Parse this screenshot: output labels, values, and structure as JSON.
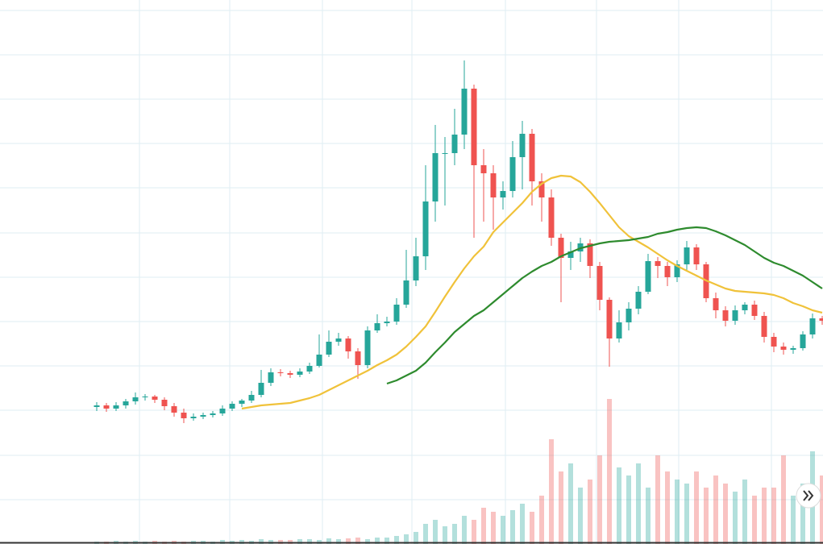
{
  "chart_data": {
    "type": "candlestick",
    "ylim": [
      0,
      675
    ],
    "yticks": [
      55,
      110,
      166,
      221,
      276,
      331,
      386,
      442,
      497,
      552,
      607,
      662
    ],
    "grid": true,
    "up_color": "#26a69a",
    "down_color": "#ef5350",
    "open": [
      170,
      172,
      168,
      172,
      177,
      182,
      183,
      179,
      171,
      163,
      156,
      158,
      160,
      162,
      168,
      174,
      178,
      185,
      200,
      213,
      212,
      210,
      214,
      221,
      235,
      251,
      255,
      239,
      222,
      265,
      274,
      276,
      297,
      327,
      357,
      425,
      485,
      485,
      508,
      565,
      470,
      460,
      430,
      438,
      480,
      509,
      450,
      430,
      380,
      355,
      363,
      373,
      345,
      303,
      255,
      275,
      292,
      313,
      351,
      345,
      331,
      347,
      368,
      347,
      305,
      290,
      277,
      290,
      297,
      283,
      257,
      245,
      241,
      243,
      260,
      280
    ],
    "high": [
      176,
      175,
      176,
      180,
      188,
      186,
      185,
      182,
      175,
      168,
      162,
      163,
      165,
      172,
      177,
      180,
      190,
      216,
      218,
      217,
      215,
      218,
      225,
      260,
      265,
      262,
      258,
      243,
      270,
      285,
      282,
      305,
      365,
      380,
      470,
      520,
      505,
      540,
      600,
      570,
      490,
      470,
      450,
      500,
      525,
      515,
      460,
      440,
      385,
      375,
      380,
      378,
      350,
      306,
      290,
      300,
      320,
      360,
      356,
      350,
      352,
      376,
      372,
      350,
      312,
      295,
      296,
      300,
      302,
      288,
      262,
      250,
      246,
      264,
      286,
      283
    ],
    "low": [
      165,
      164,
      165,
      168,
      173,
      178,
      175,
      166,
      158,
      150,
      153,
      155,
      157,
      159,
      165,
      170,
      175,
      182,
      196,
      208,
      206,
      207,
      211,
      219,
      232,
      246,
      230,
      205,
      218,
      262,
      270,
      272,
      293,
      320,
      340,
      400,
      420,
      470,
      490,
      380,
      400,
      390,
      415,
      430,
      440,
      420,
      400,
      370,
      300,
      340,
      350,
      330,
      290,
      220,
      250,
      265,
      285,
      310,
      330,
      320,
      325,
      340,
      340,
      300,
      280,
      270,
      272,
      285,
      278,
      250,
      238,
      235,
      236,
      240,
      255,
      272
    ],
    "close": [
      172,
      168,
      172,
      177,
      182,
      183,
      179,
      171,
      163,
      156,
      158,
      160,
      162,
      168,
      174,
      178,
      185,
      200,
      213,
      212,
      210,
      214,
      221,
      235,
      251,
      255,
      239,
      222,
      265,
      274,
      276,
      297,
      327,
      357,
      425,
      485,
      485,
      508,
      565,
      470,
      460,
      430,
      438,
      480,
      509,
      450,
      430,
      380,
      355,
      363,
      373,
      345,
      303,
      255,
      275,
      292,
      313,
      351,
      345,
      331,
      347,
      368,
      347,
      305,
      290,
      277,
      290,
      297,
      283,
      257,
      245,
      241,
      243,
      260,
      280,
      277
    ],
    "volume": [
      3,
      3,
      4,
      3,
      4,
      3,
      4,
      3,
      4,
      3,
      4,
      4,
      3,
      5,
      4,
      5,
      4,
      6,
      5,
      5,
      5,
      6,
      6,
      5,
      7,
      6,
      7,
      8,
      6,
      8,
      8,
      10,
      12,
      15,
      25,
      30,
      22,
      25,
      35,
      30,
      45,
      40,
      35,
      42,
      50,
      40,
      60,
      130,
      90,
      100,
      70,
      80,
      110,
      180,
      95,
      85,
      100,
      70,
      110,
      90,
      80,
      75,
      90,
      70,
      85,
      75,
      65,
      80,
      60,
      70,
      70,
      110,
      60,
      75,
      115,
      85
    ],
    "series": [
      {
        "color": "#f0c23a",
        "values": [
          null,
          null,
          null,
          null,
          null,
          null,
          null,
          null,
          null,
          null,
          null,
          null,
          null,
          null,
          null,
          168,
          170,
          172,
          173,
          174,
          175,
          178,
          181,
          185,
          191,
          197,
          203,
          209,
          215,
          222,
          228,
          235,
          245,
          257,
          270,
          288,
          307,
          325,
          342,
          357,
          369,
          387,
          399,
          411,
          423,
          437,
          447,
          454,
          457,
          456,
          449,
          437,
          423,
          408,
          393,
          382,
          375,
          368,
          360,
          352,
          345,
          339,
          333,
          327,
          322,
          317,
          314,
          313,
          312,
          311,
          309,
          305,
          299,
          295,
          290,
          287
        ]
      },
      {
        "color": "#2e8b2e",
        "values": [
          null,
          null,
          null,
          null,
          null,
          null,
          null,
          null,
          null,
          null,
          null,
          null,
          null,
          null,
          null,
          null,
          null,
          null,
          null,
          null,
          null,
          null,
          null,
          null,
          null,
          null,
          null,
          null,
          null,
          null,
          199,
          203,
          209,
          215,
          225,
          238,
          250,
          263,
          273,
          283,
          290,
          300,
          310,
          320,
          330,
          338,
          345,
          350,
          357,
          362,
          367,
          370,
          373,
          375,
          376,
          377,
          379,
          381,
          385,
          387,
          390,
          392,
          393,
          392,
          388,
          383,
          377,
          371,
          363,
          355,
          349,
          345,
          339,
          333,
          325,
          317
        ]
      }
    ]
  }
}
